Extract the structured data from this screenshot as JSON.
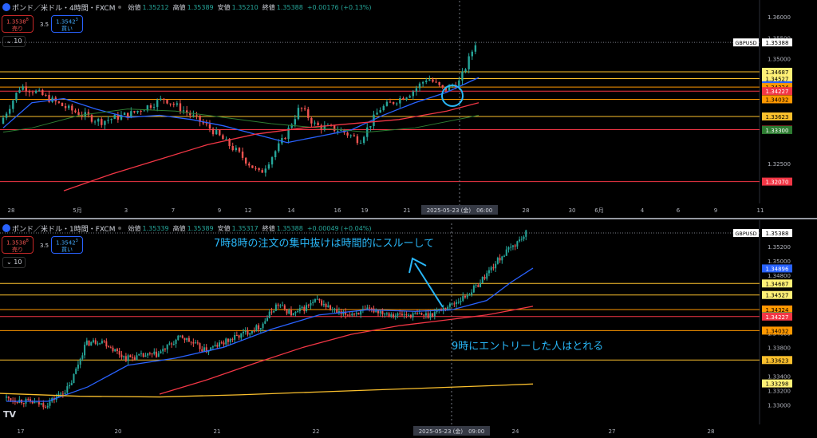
{
  "top_panel": {
    "title": "ポンド／米ドル・4時間・FXCM",
    "ohlc": [
      {
        "label": "始値",
        "value": "1.35212"
      },
      {
        "label": "高値",
        "value": "1.35389"
      },
      {
        "label": "安値",
        "value": "1.35210"
      },
      {
        "label": "終値",
        "value": "1.35388"
      }
    ],
    "change": "+0.00176 (+0.13%)",
    "sell_price": "1.3538",
    "sell_sup": "8",
    "sell_label": "売り",
    "spread": "3.5",
    "buy_price": "1.3542",
    "buy_sup": "3",
    "buy_label": "買い",
    "indicator_toggle": "10",
    "symbol_tag": "GBPUSD",
    "price_axis": [
      {
        "price": 1.36,
        "label": "1.36000"
      },
      {
        "price": 1.355,
        "label": "1.35500"
      },
      {
        "price": 1.35,
        "label": "1.35000"
      },
      {
        "price": 1.325,
        "label": "1.32500"
      }
    ],
    "price_tags": [
      {
        "price": 1.35388,
        "label": "1.35388",
        "bg": "#ffffff",
        "fg": "#000000"
      },
      {
        "price": 1.34687,
        "label": "1.34687",
        "bg": "#fff176",
        "fg": "#000000"
      },
      {
        "price": 1.34527,
        "label": "1.34527",
        "bg": "#fff176",
        "fg": "#000000"
      },
      {
        "price": 1.34368,
        "label": "1.34368",
        "bg": "#2962ff",
        "fg": "#ffffff"
      },
      {
        "price": 1.34324,
        "label": "1.34324",
        "bg": "#ff9800",
        "fg": "#000000"
      },
      {
        "price": 1.34227,
        "label": "1.34227",
        "bg": "#f23645",
        "fg": "#ffffff"
      },
      {
        "price": 1.34032,
        "label": "1.34032",
        "bg": "#ff9800",
        "fg": "#000000"
      },
      {
        "price": 1.33623,
        "label": "1.33623",
        "bg": "#fbc02d",
        "fg": "#000000"
      },
      {
        "price": 1.33308,
        "label": "1.33308",
        "bg": "#f23645",
        "fg": "#ffffff"
      },
      {
        "price": 1.333,
        "label": "1.33300",
        "bg": "#2e7d32",
        "fg": "#ffffff"
      },
      {
        "price": 1.3207,
        "label": "1.32070",
        "bg": "#f23645",
        "fg": "#ffffff"
      }
    ],
    "hlines": [
      {
        "price": 1.34687,
        "color": "#fbc02d"
      },
      {
        "price": 1.34527,
        "color": "#fbc02d"
      },
      {
        "price": 1.34324,
        "color": "#ff9800"
      },
      {
        "price": 1.34227,
        "color": "#f23645"
      },
      {
        "price": 1.34032,
        "color": "#ff9800"
      },
      {
        "price": 1.33623,
        "color": "#fbc02d"
      },
      {
        "price": 1.33308,
        "color": "#f23645"
      },
      {
        "price": 1.3207,
        "color": "#f23645"
      }
    ],
    "time_axis": [
      "28",
      "5月",
      "3",
      "7",
      "9",
      "12",
      "14",
      "16",
      "19",
      "21",
      "28",
      "30",
      "6月",
      "4",
      "6",
      "9",
      "11"
    ],
    "crosshair_label": "2025-05-23 (金)　06:00"
  },
  "bottom_panel": {
    "title": "ポンド／米ドル・1時間・FXCM",
    "ohlc": [
      {
        "label": "始値",
        "value": "1.35339"
      },
      {
        "label": "高値",
        "value": "1.35389"
      },
      {
        "label": "安値",
        "value": "1.35317"
      },
      {
        "label": "終値",
        "value": "1.35388"
      }
    ],
    "change": "+0.00049 (+0.04%)",
    "sell_price": "1.3538",
    "sell_sup": "8",
    "sell_label": "売り",
    "spread": "3.5",
    "buy_price": "1.3542",
    "buy_sup": "3",
    "buy_label": "買い",
    "indicator_toggle": "10",
    "symbol_tag": "GBPUSD",
    "price_axis": [
      {
        "price": 1.352,
        "label": "1.35200"
      },
      {
        "price": 1.35,
        "label": "1.35000"
      },
      {
        "price": 1.348,
        "label": "1.34800"
      },
      {
        "price": 1.34,
        "label": "1.34000"
      },
      {
        "price": 1.338,
        "label": "1.33800"
      },
      {
        "price": 1.334,
        "label": "1.33400"
      },
      {
        "price": 1.332,
        "label": "1.33200"
      },
      {
        "price": 1.33,
        "label": "1.33000"
      }
    ],
    "price_tags": [
      {
        "price": 1.35388,
        "label": "1.35388",
        "bg": "#ffffff",
        "fg": "#000000"
      },
      {
        "price": 1.34896,
        "label": "1.34896",
        "bg": "#2962ff",
        "fg": "#ffffff"
      },
      {
        "price": 1.34687,
        "label": "1.34687",
        "bg": "#fff176",
        "fg": "#000000"
      },
      {
        "price": 1.34527,
        "label": "1.34527",
        "bg": "#fff176",
        "fg": "#000000"
      },
      {
        "price": 1.34326,
        "label": "1.34326",
        "bg": "#f23645",
        "fg": "#ffffff"
      },
      {
        "price": 1.34324,
        "label": "1.34324",
        "bg": "#ff9800",
        "fg": "#000000"
      },
      {
        "price": 1.34235,
        "label": "1.34235",
        "bg": "#43a047",
        "fg": "#ffffff"
      },
      {
        "price": 1.34227,
        "label": "1.34227",
        "bg": "#f23645",
        "fg": "#ffffff"
      },
      {
        "price": 1.34032,
        "label": "1.34032",
        "bg": "#ff9800",
        "fg": "#000000"
      },
      {
        "price": 1.33623,
        "label": "1.33623",
        "bg": "#fbc02d",
        "fg": "#000000"
      },
      {
        "price": 1.33298,
        "label": "1.33298",
        "bg": "#fff176",
        "fg": "#000000"
      }
    ],
    "hlines": [
      {
        "price": 1.34687,
        "color": "#fbc02d"
      },
      {
        "price": 1.34527,
        "color": "#fbc02d"
      },
      {
        "price": 1.34324,
        "color": "#ff9800"
      },
      {
        "price": 1.34227,
        "color": "#f23645"
      },
      {
        "price": 1.34032,
        "color": "#ff9800"
      },
      {
        "price": 1.33623,
        "color": "#fbc02d"
      }
    ],
    "time_axis": [
      "17",
      "20",
      "21",
      "22",
      "24",
      "27",
      "28"
    ],
    "crosshair_label": "2025-05-23 (金)　09:00",
    "annotation_top": "7時8時の注文の集中抜けは時間的にスルーして",
    "annotation_bottom": "9時にエントリーした人はとれる"
  },
  "colors": {
    "up": "#26a69a",
    "down": "#ef5350",
    "ma_blue": "#2962ff",
    "ma_red": "#f23645",
    "ma_green": "#2e7d32",
    "ma_yellow": "#fbc02d",
    "annotation": "#29b6f6"
  }
}
